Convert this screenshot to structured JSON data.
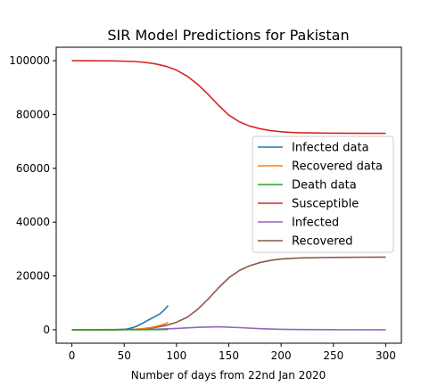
{
  "chart_data": {
    "type": "line",
    "title": "SIR Model Predictions for Pakistan",
    "xlabel": "Number of days from 22nd Jan 2020",
    "ylabel": "",
    "xlim": [
      -15,
      315
    ],
    "ylim": [
      -5000,
      105000
    ],
    "xticks": [
      0,
      50,
      100,
      150,
      200,
      250,
      300
    ],
    "yticks": [
      0,
      20000,
      40000,
      60000,
      80000,
      100000
    ],
    "grid": false,
    "legend_position": "center-right",
    "series": [
      {
        "name": "Infected data",
        "color": "#1f77b4",
        "x": [
          0,
          30,
          45,
          52,
          56,
          60,
          64,
          68,
          72,
          76,
          80,
          84,
          88,
          92
        ],
        "y": [
          0,
          0,
          10,
          200,
          600,
          1000,
          1700,
          2500,
          3400,
          4200,
          5000,
          5900,
          7200,
          9000
        ]
      },
      {
        "name": "Recovered data",
        "color": "#ff7f0e",
        "x": [
          0,
          40,
          55,
          65,
          75,
          80,
          85,
          90,
          92
        ],
        "y": [
          0,
          0,
          50,
          300,
          800,
          1200,
          1700,
          2300,
          2800
        ]
      },
      {
        "name": "Death data",
        "color": "#2ca02c",
        "x": [
          0,
          40,
          60,
          80,
          92
        ],
        "y": [
          0,
          0,
          20,
          60,
          120
        ]
      },
      {
        "name": "Susceptible",
        "color": "#d62728",
        "x": [
          0,
          20,
          40,
          60,
          70,
          80,
          90,
          100,
          110,
          120,
          130,
          140,
          150,
          160,
          170,
          180,
          190,
          200,
          210,
          220,
          240,
          260,
          280,
          300
        ],
        "y": [
          100000,
          99980,
          99920,
          99700,
          99400,
          98800,
          97900,
          96500,
          94300,
          91300,
          87600,
          83500,
          79800,
          77300,
          75700,
          74700,
          74000,
          73600,
          73350,
          73200,
          73100,
          73050,
          73020,
          73000
        ]
      },
      {
        "name": "Infected",
        "color": "#9467bd",
        "x": [
          0,
          40,
          60,
          80,
          100,
          120,
          140,
          160,
          180,
          200,
          220,
          250,
          300
        ],
        "y": [
          10,
          40,
          100,
          220,
          500,
          900,
          1100,
          800,
          400,
          160,
          60,
          15,
          2
        ]
      },
      {
        "name": "Recovered",
        "color": "#8c564b",
        "x": [
          0,
          20,
          40,
          60,
          70,
          80,
          90,
          100,
          110,
          120,
          130,
          140,
          150,
          160,
          170,
          180,
          190,
          200,
          210,
          220,
          240,
          260,
          280,
          300
        ],
        "y": [
          0,
          20,
          80,
          200,
          400,
          900,
          1600,
          2800,
          4600,
          7500,
          11300,
          15500,
          19300,
          22000,
          23800,
          25000,
          25800,
          26300,
          26550,
          26700,
          26850,
          26920,
          26970,
          27000
        ]
      }
    ]
  }
}
